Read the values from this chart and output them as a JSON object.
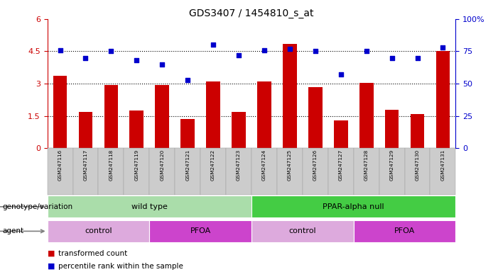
{
  "title": "GDS3407 / 1454810_s_at",
  "samples": [
    "GSM247116",
    "GSM247117",
    "GSM247118",
    "GSM247119",
    "GSM247120",
    "GSM247121",
    "GSM247122",
    "GSM247123",
    "GSM247124",
    "GSM247125",
    "GSM247126",
    "GSM247127",
    "GSM247128",
    "GSM247129",
    "GSM247130",
    "GSM247131"
  ],
  "bar_values": [
    3.35,
    1.7,
    2.95,
    1.75,
    2.95,
    1.35,
    3.1,
    1.7,
    3.1,
    4.85,
    2.85,
    1.3,
    3.05,
    1.8,
    1.6,
    4.5
  ],
  "dot_values": [
    76,
    70,
    75,
    68,
    65,
    53,
    80,
    72,
    76,
    77,
    75,
    57,
    75,
    70,
    70,
    78
  ],
  "bar_color": "#cc0000",
  "dot_color": "#0000cc",
  "ylim_left": [
    0,
    6
  ],
  "ylim_right": [
    0,
    100
  ],
  "yticks_left": [
    0,
    1.5,
    3.0,
    4.5,
    6
  ],
  "yticks_right": [
    0,
    25,
    50,
    75,
    100
  ],
  "ytick_labels_left": [
    "0",
    "1.5",
    "3",
    "4.5",
    "6"
  ],
  "ytick_labels_right": [
    "0",
    "25",
    "50",
    "75",
    "100%"
  ],
  "hlines": [
    1.5,
    3.0,
    4.5
  ],
  "genotype_labels": [
    {
      "text": "wild type",
      "start": 0,
      "end": 8,
      "color": "#aaddaa"
    },
    {
      "text": "PPAR-alpha null",
      "start": 8,
      "end": 16,
      "color": "#44cc44"
    }
  ],
  "agent_labels": [
    {
      "text": "control",
      "start": 0,
      "end": 4,
      "color": "#ddaadd"
    },
    {
      "text": "PFOA",
      "start": 4,
      "end": 8,
      "color": "#cc44cc"
    },
    {
      "text": "control",
      "start": 8,
      "end": 12,
      "color": "#ddaadd"
    },
    {
      "text": "PFOA",
      "start": 12,
      "end": 16,
      "color": "#cc44cc"
    }
  ],
  "legend_bar_label": "transformed count",
  "legend_dot_label": "percentile rank within the sample",
  "genotype_row_label": "genotype/variation",
  "agent_row_label": "agent",
  "cell_bg": "#cccccc",
  "cell_edge": "#999999"
}
